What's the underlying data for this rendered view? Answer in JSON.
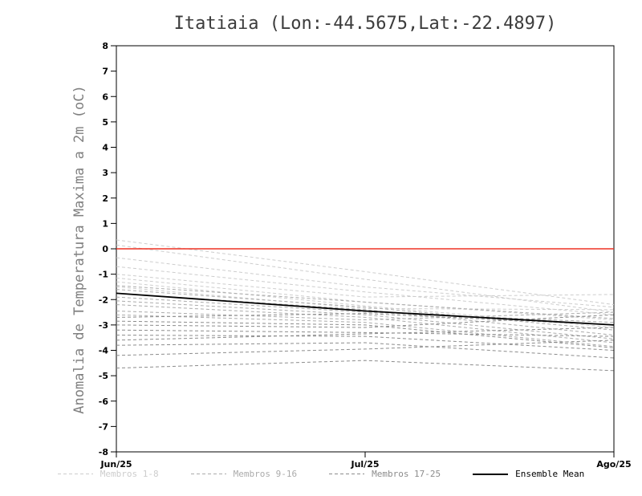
{
  "chart_data": {
    "type": "line",
    "title": "Itatiaia (Lon:-44.5675,Lat:-22.4897)",
    "ylabel": "Anomalia de Temperatura Maxima a 2m (oC)",
    "xlabel": "",
    "x_labels": [
      "Jun/25",
      "Jul/25",
      "Ago/25"
    ],
    "ylim": [
      -8,
      8
    ],
    "ytick_step": 1,
    "grid": false,
    "legend_position": "bottom",
    "frame_color": "#000000",
    "zero_line": {
      "value": 0,
      "color": "#ee3224"
    },
    "groups": [
      {
        "name": "Membros 1-8",
        "color": "#cdcdcd",
        "style": "dashed",
        "series": [
          [
            0.35,
            -0.9,
            -2.2
          ],
          [
            0.15,
            -1.2,
            -2.5
          ],
          [
            -0.35,
            -1.5,
            -2.3
          ],
          [
            -0.7,
            -1.7,
            -2.6
          ],
          [
            -1.0,
            -1.9,
            -1.8
          ],
          [
            -1.15,
            -2.1,
            -2.8
          ],
          [
            -1.3,
            -2.25,
            -3.1
          ],
          [
            -1.5,
            -2.35,
            -2.4
          ]
        ]
      },
      {
        "name": "Membros 9-16",
        "color": "#ababab",
        "style": "dashed",
        "series": [
          [
            -1.45,
            -2.1,
            -2.75
          ],
          [
            -1.6,
            -2.3,
            -3.2
          ],
          [
            -1.75,
            -2.4,
            -3.4
          ],
          [
            -1.9,
            -2.5,
            -2.9
          ],
          [
            -2.05,
            -2.6,
            -3.55
          ],
          [
            -2.2,
            -2.7,
            -3.7
          ],
          [
            -2.45,
            -2.8,
            -2.5
          ],
          [
            -2.6,
            -2.9,
            -3.85
          ]
        ]
      },
      {
        "name": "Membros 17-25",
        "color": "#8c8c8c",
        "style": "dashed",
        "series": [
          [
            -2.7,
            -2.55,
            -3.0
          ],
          [
            -2.85,
            -3.0,
            -3.9
          ],
          [
            -3.0,
            -3.1,
            -2.6
          ],
          [
            -3.2,
            -3.3,
            -3.45
          ],
          [
            -3.4,
            -3.45,
            -4.0
          ],
          [
            -3.6,
            -3.35,
            -3.1
          ],
          [
            -3.8,
            -3.7,
            -4.3
          ],
          [
            -4.2,
            -3.95,
            -3.6
          ],
          [
            -4.7,
            -4.4,
            -4.8
          ]
        ]
      }
    ],
    "mean": {
      "name": "Ensemble Mean",
      "color": "#000000",
      "style": "solid",
      "values": [
        -1.75,
        -2.45,
        -3.0
      ]
    }
  }
}
